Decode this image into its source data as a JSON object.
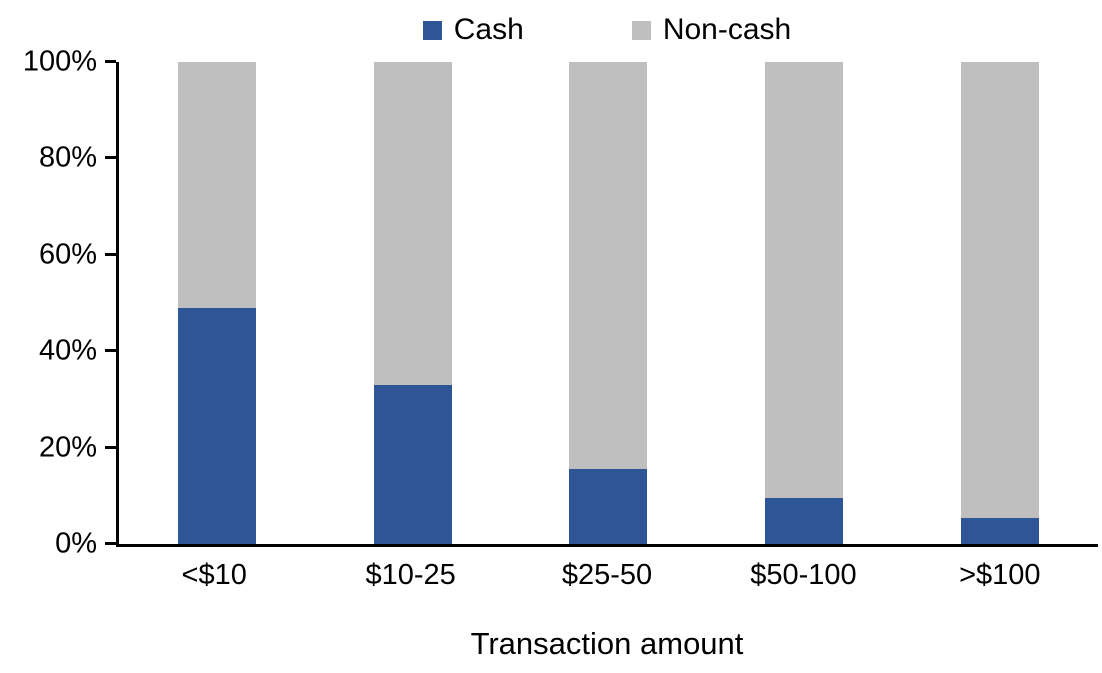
{
  "chart_data": {
    "type": "bar",
    "stacked": true,
    "stack_total": 100,
    "title": "",
    "xlabel": "Transaction amount",
    "ylabel": "",
    "categories": [
      "<$10",
      "$10-25",
      "$25-50",
      "$50-100",
      ">$100"
    ],
    "series": [
      {
        "name": "Cash",
        "color": "#2E5596",
        "values": [
          49,
          33,
          15.5,
          9.5,
          5.5
        ]
      },
      {
        "name": "Non-cash",
        "color": "#BFBFBF",
        "values": [
          51,
          67,
          84.5,
          90.5,
          94.5
        ]
      }
    ],
    "ylim": [
      0,
      100
    ],
    "yticks": [
      0,
      20,
      40,
      60,
      80,
      100
    ],
    "ytick_labels": [
      "0%",
      "20%",
      "40%",
      "60%",
      "80%",
      "100%"
    ],
    "legend_position": "top-center",
    "grid": false,
    "axis_color": "#000000",
    "background_color": "#FFFFFF"
  }
}
